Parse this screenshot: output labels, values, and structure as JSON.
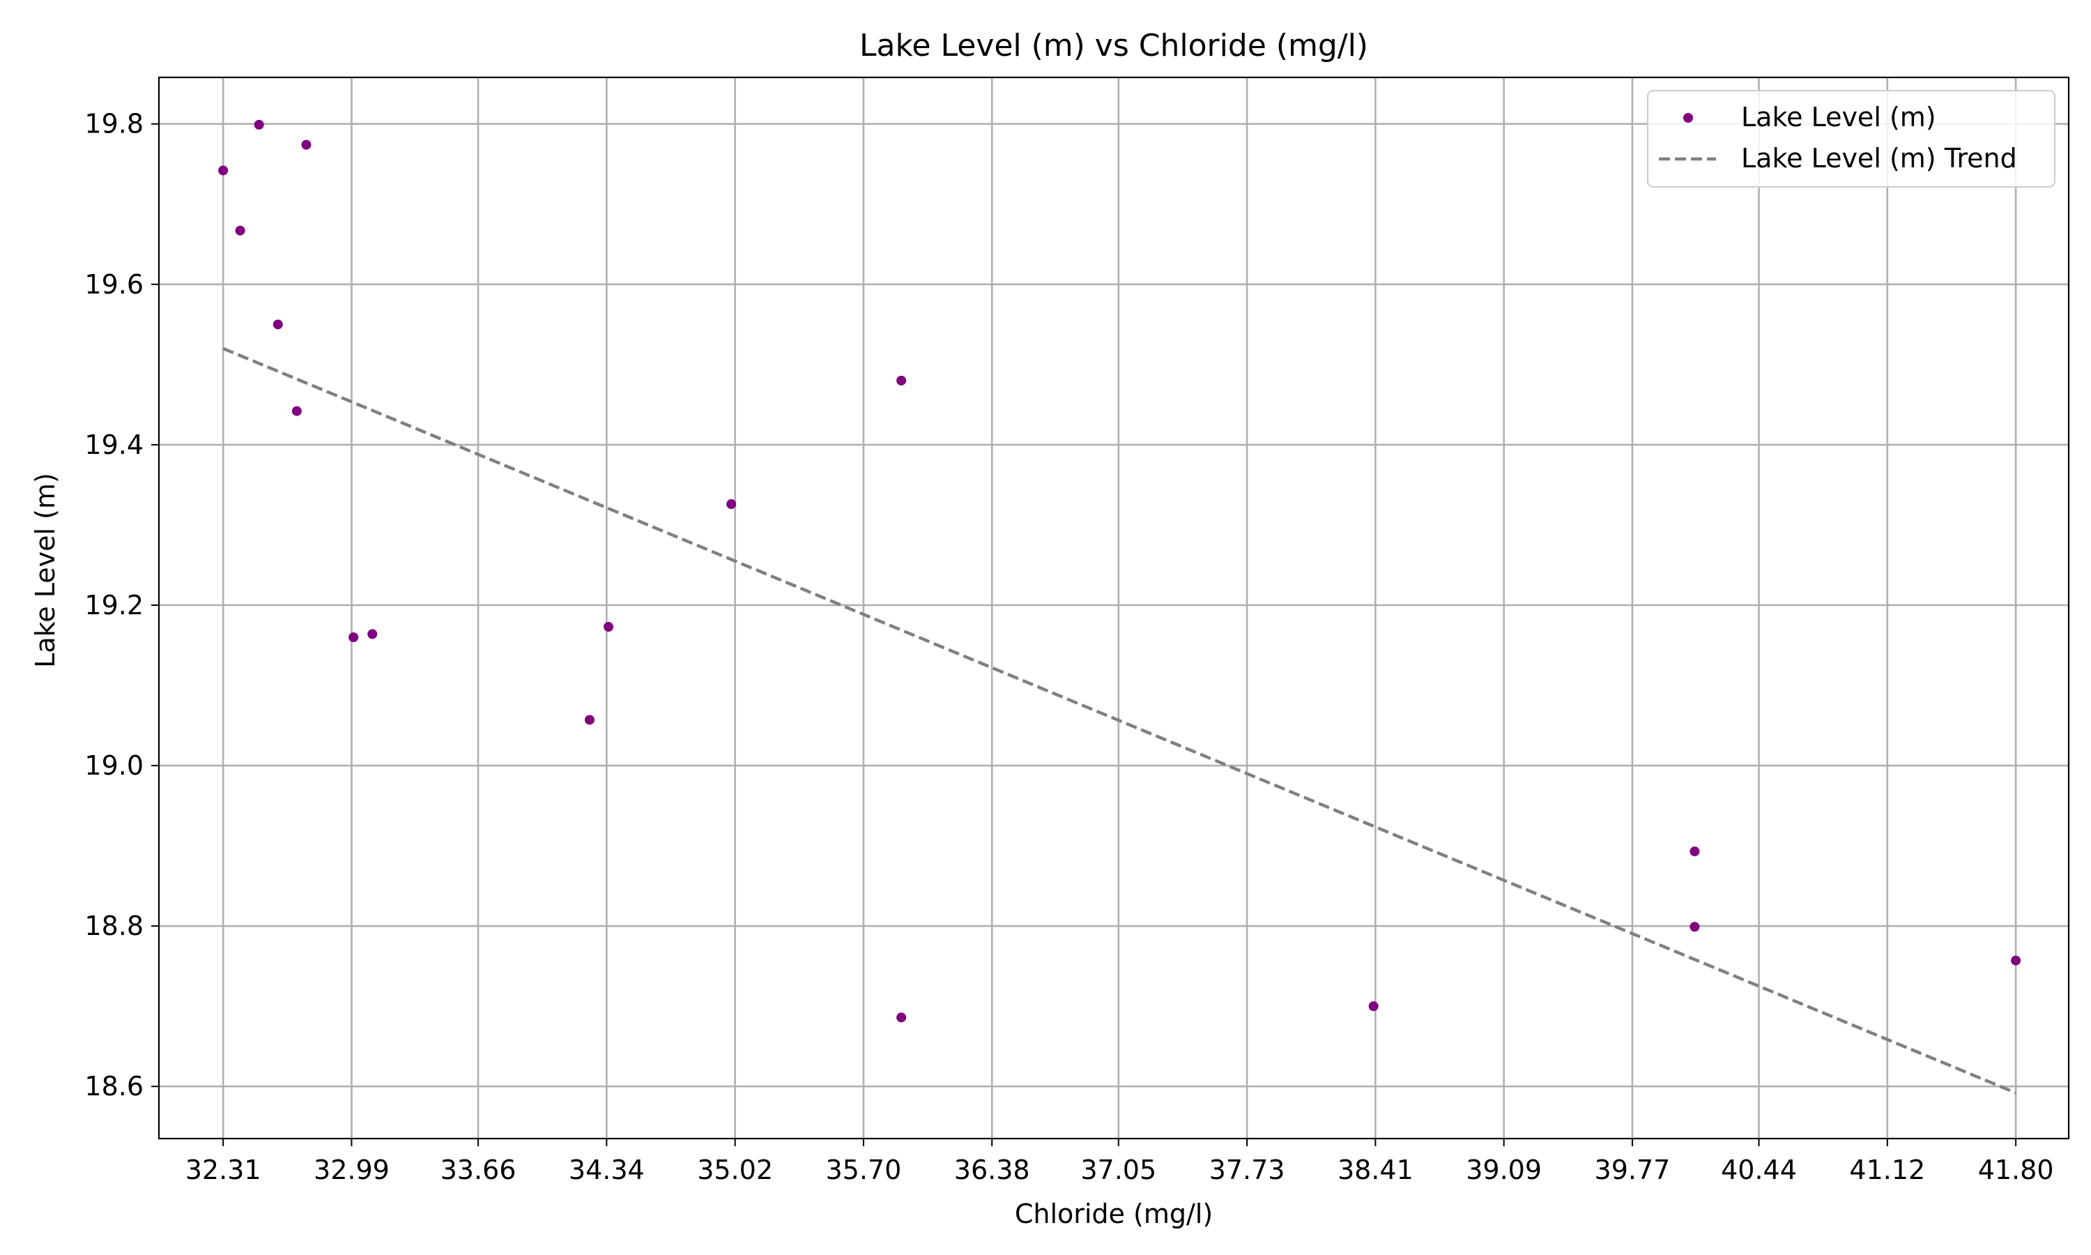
{
  "chart_data": {
    "type": "scatter",
    "title": "Lake Level (m) vs Chloride (mg/l)",
    "xlabel": "Chloride (mg/l)",
    "ylabel": "Lake Level (m)",
    "xlim": [
      31.97,
      42.08
    ],
    "ylim": [
      18.535,
      19.858
    ],
    "x_ticks": [
      "32.31",
      "32.99",
      "33.66",
      "34.34",
      "35.02",
      "35.70",
      "36.38",
      "37.05",
      "37.73",
      "38.41",
      "39.09",
      "39.77",
      "40.44",
      "41.12",
      "41.80"
    ],
    "y_ticks": [
      "18.6",
      "18.8",
      "19.0",
      "19.2",
      "19.4",
      "19.6",
      "19.8"
    ],
    "grid": true,
    "legend_position": "top-right",
    "series": [
      {
        "name": "Lake Level (m)",
        "kind": "scatter",
        "color": "#800080",
        "points": [
          {
            "x": 32.31,
            "y": 19.742
          },
          {
            "x": 32.4,
            "y": 19.667
          },
          {
            "x": 32.5,
            "y": 19.799
          },
          {
            "x": 32.6,
            "y": 19.55
          },
          {
            "x": 32.7,
            "y": 19.442
          },
          {
            "x": 32.75,
            "y": 19.774
          },
          {
            "x": 33.0,
            "y": 19.16
          },
          {
            "x": 33.1,
            "y": 19.164
          },
          {
            "x": 34.25,
            "y": 19.057
          },
          {
            "x": 34.35,
            "y": 19.173
          },
          {
            "x": 35.0,
            "y": 19.326
          },
          {
            "x": 35.9,
            "y": 19.48
          },
          {
            "x": 35.9,
            "y": 18.686
          },
          {
            "x": 38.4,
            "y": 18.7
          },
          {
            "x": 40.1,
            "y": 18.893
          },
          {
            "x": 40.1,
            "y": 18.799
          },
          {
            "x": 41.8,
            "y": 18.757
          }
        ]
      },
      {
        "name": "Lake Level (m) Trend",
        "kind": "line",
        "style": "dashed",
        "color": "#808080",
        "points": [
          {
            "x": 32.31,
            "y": 19.52
          },
          {
            "x": 41.8,
            "y": 18.592
          }
        ]
      }
    ]
  }
}
